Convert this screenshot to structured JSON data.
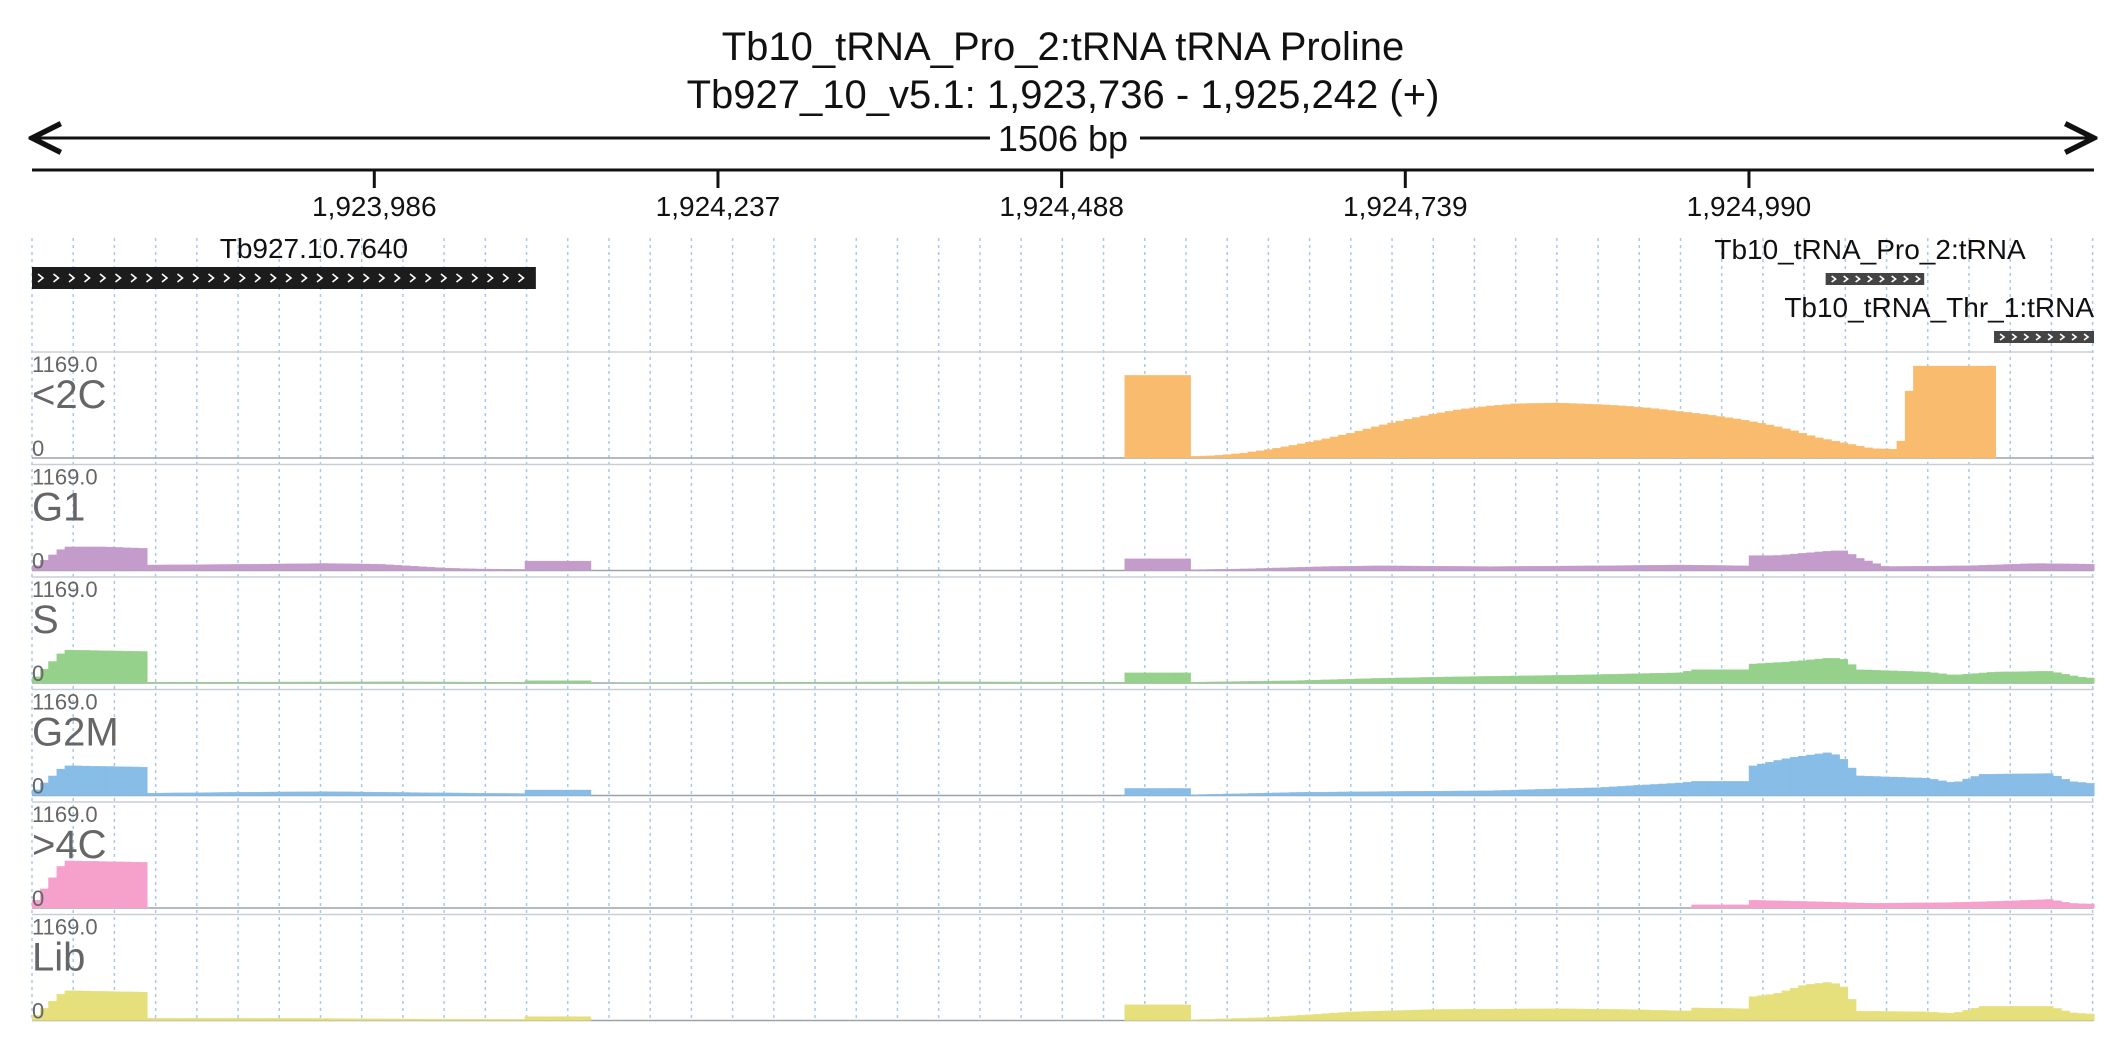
{
  "header": {
    "title_line1": "Tb10_tRNA_Pro_2:tRNA  tRNA Proline",
    "title_line2": "Tb927_10_v5.1: 1,923,736 - 1,925,242 (+)",
    "span_label": "1506 bp"
  },
  "region": {
    "start": 1923736,
    "end": 1925242
  },
  "ruler_ticks": [
    {
      "pos": 1923986,
      "label": "1,923,986"
    },
    {
      "pos": 1924237,
      "label": "1,924,237"
    },
    {
      "pos": 1924488,
      "label": "1,924,488"
    },
    {
      "pos": 1924739,
      "label": "1,924,739"
    },
    {
      "pos": 1924990,
      "label": "1,924,990"
    }
  ],
  "features": [
    {
      "name": "Tb927.10.7640",
      "start": 1923736,
      "end": 1924104,
      "row": 0,
      "strand": "+",
      "color": "#1c1c1c"
    },
    {
      "name": "Tb10_tRNA_Pro_2:tRNA",
      "start": 1925046,
      "end": 1925118,
      "row": 0,
      "strand": "+",
      "color": "#444444"
    },
    {
      "name": "Tb10_tRNA_Thr_1:tRNA",
      "start": 1925169,
      "end": 1925242,
      "row": 1,
      "strand": "+",
      "color": "#444444"
    }
  ],
  "chart_data": {
    "type": "bar",
    "x_unit": "bp",
    "xlim": [
      1923736,
      1925242
    ],
    "ylim": [
      0,
      1169.0
    ],
    "y_max_label": "1169.0",
    "y_zero_label": "0",
    "grid": "vertical dashed",
    "series": [
      {
        "name": "<2C",
        "color": "#f9bb6d",
        "profile": [
          [
            1923736,
            0
          ],
          [
            1924532,
            0
          ],
          [
            1924533,
            1050
          ],
          [
            1924582,
            1050
          ],
          [
            1924583,
            20
          ],
          [
            1924600,
            30
          ],
          [
            1924620,
            60
          ],
          [
            1924640,
            110
          ],
          [
            1924660,
            170
          ],
          [
            1924680,
            240
          ],
          [
            1924700,
            320
          ],
          [
            1924720,
            410
          ],
          [
            1924740,
            490
          ],
          [
            1924760,
            560
          ],
          [
            1924780,
            620
          ],
          [
            1924800,
            660
          ],
          [
            1924820,
            690
          ],
          [
            1924850,
            700
          ],
          [
            1924880,
            680
          ],
          [
            1924900,
            660
          ],
          [
            1924920,
            630
          ],
          [
            1924940,
            590
          ],
          [
            1924960,
            550
          ],
          [
            1924980,
            500
          ],
          [
            1925000,
            440
          ],
          [
            1925020,
            360
          ],
          [
            1925040,
            260
          ],
          [
            1925060,
            190
          ],
          [
            1925080,
            120
          ],
          [
            1925100,
            110
          ],
          [
            1925110,
            1169
          ],
          [
            1925170,
            1169
          ],
          [
            1925171,
            0
          ],
          [
            1925242,
            0
          ]
        ]
      },
      {
        "name": "G1",
        "color": "#c49ccb",
        "profile": [
          [
            1923736,
            30
          ],
          [
            1923760,
            300
          ],
          [
            1923790,
            300
          ],
          [
            1923820,
            280
          ],
          [
            1923822,
            70
          ],
          [
            1923900,
            80
          ],
          [
            1923950,
            90
          ],
          [
            1923990,
            80
          ],
          [
            1924010,
            60
          ],
          [
            1924040,
            30
          ],
          [
            1924060,
            20
          ],
          [
            1924096,
            15
          ],
          [
            1924097,
            120
          ],
          [
            1924146,
            120
          ],
          [
            1924147,
            0
          ],
          [
            1924532,
            0
          ],
          [
            1924533,
            150
          ],
          [
            1924582,
            150
          ],
          [
            1924583,
            10
          ],
          [
            1924620,
            20
          ],
          [
            1924680,
            50
          ],
          [
            1924720,
            60
          ],
          [
            1924800,
            50
          ],
          [
            1924880,
            60
          ],
          [
            1924940,
            70
          ],
          [
            1924990,
            60
          ],
          [
            1924991,
            190
          ],
          [
            1925010,
            190
          ],
          [
            1925030,
            220
          ],
          [
            1925050,
            250
          ],
          [
            1925060,
            250
          ],
          [
            1925070,
            160
          ],
          [
            1925090,
            50
          ],
          [
            1925150,
            60
          ],
          [
            1925200,
            90
          ],
          [
            1925242,
            80
          ]
        ]
      },
      {
        "name": "S",
        "color": "#95d18b",
        "profile": [
          [
            1923736,
            30
          ],
          [
            1923760,
            420
          ],
          [
            1923790,
            410
          ],
          [
            1923820,
            400
          ],
          [
            1923822,
            10
          ],
          [
            1923900,
            12
          ],
          [
            1924000,
            15
          ],
          [
            1924096,
            10
          ],
          [
            1924097,
            30
          ],
          [
            1924146,
            30
          ],
          [
            1924147,
            0
          ],
          [
            1924260,
            10
          ],
          [
            1924400,
            15
          ],
          [
            1924532,
            10
          ],
          [
            1924533,
            130
          ],
          [
            1924582,
            130
          ],
          [
            1924583,
            10
          ],
          [
            1924660,
            30
          ],
          [
            1924720,
            60
          ],
          [
            1924780,
            80
          ],
          [
            1924860,
            100
          ],
          [
            1924940,
            130
          ],
          [
            1924950,
            170
          ],
          [
            1924990,
            170
          ],
          [
            1924991,
            240
          ],
          [
            1925020,
            270
          ],
          [
            1925050,
            320
          ],
          [
            1925060,
            300
          ],
          [
            1925070,
            170
          ],
          [
            1925120,
            140
          ],
          [
            1925140,
            100
          ],
          [
            1925170,
            140
          ],
          [
            1925210,
            150
          ],
          [
            1925230,
            80
          ],
          [
            1925242,
            60
          ]
        ]
      },
      {
        "name": "G2M",
        "color": "#87bde7",
        "profile": [
          [
            1923736,
            30
          ],
          [
            1923760,
            380
          ],
          [
            1923790,
            370
          ],
          [
            1923820,
            360
          ],
          [
            1923822,
            30
          ],
          [
            1923880,
            40
          ],
          [
            1923950,
            50
          ],
          [
            1924000,
            40
          ],
          [
            1924060,
            30
          ],
          [
            1924096,
            25
          ],
          [
            1924097,
            70
          ],
          [
            1924146,
            70
          ],
          [
            1924147,
            0
          ],
          [
            1924532,
            0
          ],
          [
            1924533,
            90
          ],
          [
            1924582,
            90
          ],
          [
            1924583,
            10
          ],
          [
            1924660,
            40
          ],
          [
            1924720,
            50
          ],
          [
            1924800,
            60
          ],
          [
            1924880,
            100
          ],
          [
            1924940,
            160
          ],
          [
            1924950,
            180
          ],
          [
            1924990,
            180
          ],
          [
            1924991,
            370
          ],
          [
            1925020,
            480
          ],
          [
            1925050,
            550
          ],
          [
            1925060,
            450
          ],
          [
            1925070,
            250
          ],
          [
            1925120,
            220
          ],
          [
            1925140,
            160
          ],
          [
            1925160,
            270
          ],
          [
            1925210,
            280
          ],
          [
            1925225,
            180
          ],
          [
            1925242,
            150
          ]
        ]
      },
      {
        "name": ">4C",
        "color": "#f6a1cb",
        "profile": [
          [
            1923736,
            30
          ],
          [
            1923760,
            600
          ],
          [
            1923790,
            590
          ],
          [
            1923820,
            580
          ],
          [
            1923822,
            0
          ],
          [
            1924949,
            0
          ],
          [
            1924950,
            40
          ],
          [
            1924990,
            40
          ],
          [
            1924991,
            100
          ],
          [
            1925040,
            80
          ],
          [
            1925080,
            60
          ],
          [
            1925140,
            70
          ],
          [
            1925180,
            90
          ],
          [
            1925210,
            110
          ],
          [
            1925225,
            60
          ],
          [
            1925242,
            50
          ]
        ]
      },
      {
        "name": "Lib",
        "color": "#e6e07c",
        "profile": [
          [
            1923736,
            20
          ],
          [
            1923760,
            380
          ],
          [
            1923790,
            370
          ],
          [
            1923820,
            360
          ],
          [
            1923822,
            30
          ],
          [
            1923900,
            30
          ],
          [
            1923960,
            25
          ],
          [
            1924000,
            20
          ],
          [
            1924096,
            15
          ],
          [
            1924097,
            50
          ],
          [
            1924146,
            50
          ],
          [
            1924147,
            0
          ],
          [
            1924532,
            0
          ],
          [
            1924533,
            200
          ],
          [
            1924582,
            200
          ],
          [
            1924583,
            10
          ],
          [
            1924640,
            40
          ],
          [
            1924700,
            110
          ],
          [
            1924760,
            140
          ],
          [
            1924850,
            150
          ],
          [
            1924900,
            140
          ],
          [
            1924949,
            120
          ],
          [
            1924950,
            160
          ],
          [
            1924990,
            150
          ],
          [
            1924991,
            300
          ],
          [
            1925010,
            340
          ],
          [
            1925030,
            450
          ],
          [
            1925050,
            490
          ],
          [
            1925060,
            420
          ],
          [
            1925070,
            120
          ],
          [
            1925120,
            110
          ],
          [
            1925140,
            90
          ],
          [
            1925160,
            180
          ],
          [
            1925210,
            180
          ],
          [
            1925225,
            100
          ],
          [
            1925242,
            80
          ]
        ]
      }
    ]
  }
}
